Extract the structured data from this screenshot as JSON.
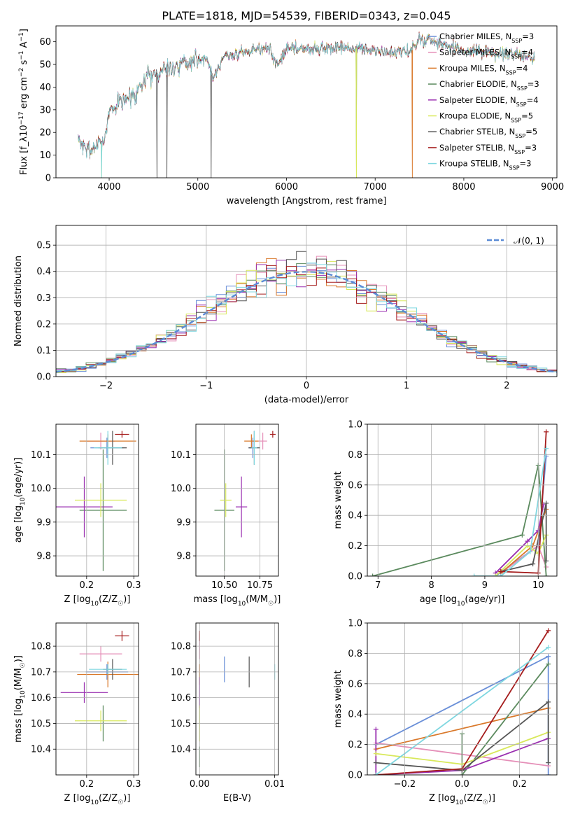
{
  "figure_title": "PLATE=1818, MJD=54539, FIBERID=0343, z=0.045",
  "colors": {
    "Chabrier MILES": "#6a8fd8",
    "Salpeter MILES": "#e58fb8",
    "Kroupa MILES": "#d9782a",
    "Chabrier ELODIE": "#5b8a5e",
    "Salpeter ELODIE": "#9a2fb0",
    "Kroupa ELODIE": "#d8e85a",
    "Chabrier STELIB": "#555555",
    "Salpeter STELIB": "#a51c1c",
    "Kroupa STELIB": "#7fd7e0"
  },
  "chart_data": [
    {
      "id": "spectrum",
      "type": "line",
      "xlabel": "wavelength [Angstrom, rest frame]",
      "ylabel": "Flux [f_λ10^-17 erg cm^-2 s^-1 A^-1]",
      "xlim": [
        3400,
        9050
      ],
      "ylim": [
        0,
        67
      ],
      "xticks": [
        4000,
        5000,
        6000,
        7000,
        8000,
        9000
      ],
      "yticks": [
        0,
        10,
        20,
        30,
        40,
        50,
        60
      ],
      "grid": false,
      "legend_position": "top-right",
      "legend": [
        {
          "label": "Chabrier MILES, N",
          "sub": "SSP",
          "suffix": "=3"
        },
        {
          "label": "Salpeter MILES, N",
          "sub": "SSP",
          "suffix": "=4"
        },
        {
          "label": "Kroupa MILES, N",
          "sub": "SSP",
          "suffix": "=4"
        },
        {
          "label": "Chabrier ELODIE, N",
          "sub": "SSP",
          "suffix": "=3"
        },
        {
          "label": "Salpeter ELODIE, N",
          "sub": "SSP",
          "suffix": "=4"
        },
        {
          "label": "Kroupa ELODIE, N",
          "sub": "SSP",
          "suffix": "=5"
        },
        {
          "label": "Chabrier STELIB, N",
          "sub": "SSP",
          "suffix": "=5"
        },
        {
          "label": "Salpeter STELIB, N",
          "sub": "SSP",
          "suffix": "=3"
        },
        {
          "label": "Kroupa STELIB, N",
          "sub": "SSP",
          "suffix": "=3"
        }
      ],
      "continuum": [
        [
          3650,
          17
        ],
        [
          3750,
          12
        ],
        [
          3850,
          14
        ],
        [
          3950,
          17
        ],
        [
          4000,
          30
        ],
        [
          4100,
          33
        ],
        [
          4200,
          35
        ],
        [
          4300,
          38
        ],
        [
          4400,
          43
        ],
        [
          4500,
          46
        ],
        [
          4600,
          48
        ],
        [
          4700,
          49
        ],
        [
          4800,
          50
        ],
        [
          4900,
          51
        ],
        [
          5000,
          52
        ],
        [
          5100,
          53
        ],
        [
          5175,
          44
        ],
        [
          5300,
          54
        ],
        [
          5500,
          55
        ],
        [
          5700,
          57
        ],
        [
          5800,
          57
        ],
        [
          5893,
          50
        ],
        [
          6000,
          57
        ],
        [
          6200,
          57
        ],
        [
          6500,
          57
        ],
        [
          6800,
          57
        ],
        [
          7000,
          56
        ],
        [
          7200,
          55
        ],
        [
          7400,
          56
        ],
        [
          7500,
          61
        ],
        [
          7600,
          61
        ],
        [
          7700,
          59
        ],
        [
          8000,
          56
        ],
        [
          8300,
          55
        ],
        [
          8600,
          54
        ],
        [
          8800,
          53
        ]
      ],
      "dropouts": [
        {
          "series": "Kroupa ELODIE",
          "x": 3915
        },
        {
          "series": "Kroupa STELIB",
          "x": 3915
        },
        {
          "series": "Chabrier ELODIE",
          "x": 6790
        },
        {
          "series": "Kroupa ELODIE",
          "x": 6790
        },
        {
          "series": "Kroupa MILES",
          "x": 7420
        },
        {
          "series": "Chabrier STELIB",
          "x": 4540
        },
        {
          "series": "Chabrier STELIB",
          "x": 4650
        },
        {
          "series": "Chabrier STELIB",
          "x": 5150
        }
      ]
    },
    {
      "id": "residuals",
      "type": "histogram",
      "xlabel": "(data-model)/error",
      "ylabel": "Normed distribution",
      "xlim": [
        -2.5,
        2.5
      ],
      "ylim": [
        0,
        0.575
      ],
      "xticks": [
        -2,
        -1,
        0,
        1,
        2
      ],
      "yticks": [
        0.0,
        0.1,
        0.2,
        0.3,
        0.4,
        0.5
      ],
      "grid": true,
      "legend_position": "top-right",
      "legend": [
        {
          "label": "𝒩(0, 1)",
          "style": "dashed"
        }
      ],
      "bin_width": 0.1,
      "x_start": -2.5
    },
    {
      "id": "age-vs-Z",
      "type": "errorbar",
      "xlabel": "Z [log10(Z/Z☉)]",
      "ylabel": "age [log10(age/yr)]",
      "xlim": [
        0.135,
        0.31
      ],
      "ylim": [
        9.74,
        10.19
      ],
      "xticks": [
        0.2,
        0.3
      ],
      "yticks": [
        9.8,
        9.9,
        10.0,
        10.1
      ],
      "grid": true,
      "points": [
        {
          "series": "Chabrier MILES",
          "x": 0.243,
          "xerr": 0.035,
          "y": 10.12,
          "yerr": 0.03
        },
        {
          "series": "Salpeter MILES",
          "x": 0.23,
          "xerr": 0.03,
          "y": 10.14,
          "yerr": 0.025
        },
        {
          "series": "Kroupa MILES",
          "x": 0.245,
          "xerr": 0.06,
          "y": 10.14,
          "yerr": 0.02
        },
        {
          "series": "Chabrier ELODIE",
          "x": 0.235,
          "xerr": 0.05,
          "y": 9.935,
          "yerr": 0.18
        },
        {
          "series": "Salpeter ELODIE",
          "x": 0.195,
          "xerr": 0.06,
          "y": 9.945,
          "yerr": 0.09
        },
        {
          "series": "Kroupa ELODIE",
          "x": 0.23,
          "xerr": 0.055,
          "y": 9.965,
          "yerr": 0.05
        },
        {
          "series": "Chabrier STELIB",
          "x": 0.255,
          "xerr": 0.03,
          "y": 10.12,
          "yerr": 0.05
        },
        {
          "series": "Salpeter STELIB",
          "x": 0.275,
          "xerr": 0.015,
          "y": 10.16,
          "yerr": 0.01
        },
        {
          "series": "Kroupa STELIB",
          "x": 0.245,
          "xerr": 0.03,
          "y": 10.12,
          "yerr": 0.05
        }
      ]
    },
    {
      "id": "age-vs-mass",
      "type": "errorbar",
      "xlabel": "mass [log10(M/M☉)]",
      "ylabel": "",
      "xlim": [
        10.3,
        10.88
      ],
      "ylim": [
        9.74,
        10.19
      ],
      "xticks": [
        10.5,
        10.75
      ],
      "yticks": [
        9.8,
        9.9,
        10.0,
        10.1
      ],
      "grid": true,
      "points": [
        {
          "series": "Chabrier MILES",
          "x": 10.7,
          "xerr": 0.03,
          "y": 10.12,
          "yerr": 0.03
        },
        {
          "series": "Salpeter MILES",
          "x": 10.77,
          "xerr": 0.03,
          "y": 10.14,
          "yerr": 0.025
        },
        {
          "series": "Kroupa MILES",
          "x": 10.69,
          "xerr": 0.05,
          "y": 10.14,
          "yerr": 0.02
        },
        {
          "series": "Chabrier ELODIE",
          "x": 10.5,
          "xerr": 0.07,
          "y": 9.935,
          "yerr": 0.18
        },
        {
          "series": "Salpeter ELODIE",
          "x": 10.62,
          "xerr": 0.04,
          "y": 9.945,
          "yerr": 0.09
        },
        {
          "series": "Kroupa ELODIE",
          "x": 10.51,
          "xerr": 0.04,
          "y": 9.965,
          "yerr": 0.05
        },
        {
          "series": "Chabrier STELIB",
          "x": 10.71,
          "xerr": 0.04,
          "y": 10.12,
          "yerr": 0.05
        },
        {
          "series": "Salpeter STELIB",
          "x": 10.84,
          "xerr": 0.02,
          "y": 10.16,
          "yerr": 0.01
        },
        {
          "series": "Kroupa STELIB",
          "x": 10.71,
          "xerr": 0.02,
          "y": 10.12,
          "yerr": 0.05
        }
      ]
    },
    {
      "id": "weight-vs-age",
      "type": "line",
      "xlabel": "age [log10(age/yr)]",
      "ylabel": "mass weight",
      "xlim": [
        6.8,
        10.35
      ],
      "ylim": [
        0,
        1.0
      ],
      "xticks": [
        7,
        8,
        9,
        10
      ],
      "yticks": [
        0.0,
        0.2,
        0.4,
        0.6,
        0.8,
        1.0
      ],
      "grid": true,
      "series": [
        {
          "name": "Chabrier MILES",
          "x": [
            9.2,
            10.0,
            10.15
          ],
          "y": [
            0.0,
            0.2,
            0.79
          ]
        },
        {
          "name": "Salpeter MILES",
          "x": [
            9.3,
            10.0,
            10.15
          ],
          "y": [
            0.02,
            0.2,
            0.06
          ]
        },
        {
          "name": "Kroupa MILES",
          "x": [
            9.3,
            9.9,
            10.15
          ],
          "y": [
            0.02,
            0.2,
            0.44
          ]
        },
        {
          "name": "Chabrier ELODIE",
          "x": [
            6.9,
            9.7,
            10.0,
            10.15
          ],
          "y": [
            0.0,
            0.27,
            0.73,
            0.0
          ]
        },
        {
          "name": "Salpeter ELODIE",
          "x": [
            9.2,
            9.8,
            10.0,
            10.1
          ],
          "y": [
            0.02,
            0.23,
            0.3,
            0.47
          ]
        },
        {
          "name": "Kroupa ELODIE",
          "x": [
            9.2,
            9.8,
            10.0,
            10.15
          ],
          "y": [
            0.0,
            0.2,
            0.15,
            0.27
          ]
        },
        {
          "name": "Chabrier STELIB",
          "x": [
            9.3,
            9.9,
            10.15,
            10.15
          ],
          "y": [
            0.03,
            0.08,
            0.48,
            0.1
          ]
        },
        {
          "name": "Salpeter STELIB",
          "x": [
            9.3,
            10.0,
            10.15
          ],
          "y": [
            0.03,
            0.02,
            0.95
          ]
        },
        {
          "name": "Kroupa STELIB",
          "x": [
            8.8,
            9.3,
            9.85,
            10.15
          ],
          "y": [
            0.0,
            0.0,
            0.16,
            0.84
          ]
        }
      ]
    },
    {
      "id": "mass-vs-Z",
      "type": "errorbar",
      "xlabel": "Z [log10(Z/Z☉)]",
      "ylabel": "mass [log10(M/M☉)]",
      "xlim": [
        0.135,
        0.31
      ],
      "ylim": [
        10.3,
        10.89
      ],
      "xticks": [
        0.2,
        0.3
      ],
      "yticks": [
        10.4,
        10.5,
        10.6,
        10.7,
        10.8
      ],
      "grid": true,
      "points": [
        {
          "series": "Chabrier MILES",
          "x": 0.243,
          "xerr": 0.045,
          "y": 10.7,
          "yerr": 0.03
        },
        {
          "series": "Salpeter MILES",
          "x": 0.23,
          "xerr": 0.045,
          "y": 10.77,
          "yerr": 0.03
        },
        {
          "series": "Kroupa MILES",
          "x": 0.245,
          "xerr": 0.065,
          "y": 10.69,
          "yerr": 0.05
        },
        {
          "series": "Chabrier ELODIE",
          "x": 0.235,
          "xerr": 0.05,
          "y": 10.5,
          "yerr": 0.07
        },
        {
          "series": "Salpeter ELODIE",
          "x": 0.195,
          "xerr": 0.05,
          "y": 10.62,
          "yerr": 0.04
        },
        {
          "series": "Kroupa ELODIE",
          "x": 0.23,
          "xerr": 0.055,
          "y": 10.51,
          "yerr": 0.04
        },
        {
          "series": "Chabrier STELIB",
          "x": 0.255,
          "xerr": 0.02,
          "y": 10.71,
          "yerr": 0.04
        },
        {
          "series": "Salpeter STELIB",
          "x": 0.275,
          "xerr": 0.015,
          "y": 10.84,
          "yerr": 0.02
        },
        {
          "series": "Kroupa STELIB",
          "x": 0.245,
          "xerr": 0.04,
          "y": 10.71,
          "yerr": 0.02
        }
      ]
    },
    {
      "id": "mass-vs-ebv",
      "type": "errorbar",
      "xlabel": "E(B-V)",
      "ylabel": "",
      "xlim": [
        -0.0005,
        0.0105
      ],
      "ylim": [
        10.3,
        10.89
      ],
      "xticks": [
        0.0,
        0.01
      ],
      "xticklabels": [
        "0.00",
        "0.01"
      ],
      "yticks": [
        10.4,
        10.5,
        10.6,
        10.7,
        10.8
      ],
      "grid": true,
      "points": [
        {
          "series": "Chabrier MILES",
          "x": 0.0033,
          "xerr": 0,
          "y": 10.71,
          "yerr": 0.05
        },
        {
          "series": "Salpeter MILES",
          "x": 0.0,
          "xerr": 0,
          "y": 10.8,
          "yerr": 0.05
        },
        {
          "series": "Kroupa MILES",
          "x": 0.0,
          "xerr": 0,
          "y": 10.69,
          "yerr": 0.04
        },
        {
          "series": "Chabrier ELODIE",
          "x": 0.0,
          "xerr": 0,
          "y": 10.37,
          "yerr": 0.04
        },
        {
          "series": "Salpeter ELODIE",
          "x": 0.0,
          "xerr": 0,
          "y": 10.62,
          "yerr": 0.06
        },
        {
          "series": "Kroupa ELODIE",
          "x": 0.0,
          "xerr": 0,
          "y": 10.5,
          "yerr": 0.07
        },
        {
          "series": "Chabrier STELIB",
          "x": 0.0066,
          "xerr": 0,
          "y": 10.7,
          "yerr": 0.06
        },
        {
          "series": "Salpeter STELIB",
          "x": 0.0,
          "xerr": 0,
          "y": 10.84,
          "yerr": 0.02
        },
        {
          "series": "Kroupa STELIB",
          "x": 0.01,
          "xerr": 0,
          "y": 10.7,
          "yerr": 0.03
        }
      ]
    },
    {
      "id": "weight-vs-Z",
      "type": "line",
      "xlabel": "Z [log10(Z/Z☉)]",
      "ylabel": "mass weight",
      "xlim": [
        -0.33,
        0.33
      ],
      "ylim": [
        0,
        1.0
      ],
      "xticks": [
        -0.2,
        0.0,
        0.2
      ],
      "yticks": [
        0.0,
        0.2,
        0.4,
        0.6,
        0.8,
        1.0
      ],
      "grid": true,
      "series": [
        {
          "name": "Chabrier MILES",
          "x": [
            -0.3,
            0.3,
            0.3
          ],
          "y": [
            0.2,
            0.78,
            0.0
          ]
        },
        {
          "name": "Salpeter MILES",
          "x": [
            -0.3,
            0.3
          ],
          "y": [
            0.21,
            0.06
          ]
        },
        {
          "name": "Kroupa MILES",
          "x": [
            -0.3,
            0.3
          ],
          "y": [
            0.17,
            0.44
          ]
        },
        {
          "name": "Chabrier ELODIE",
          "x": [
            0.0,
            0.0,
            0.3
          ],
          "y": [
            0.27,
            0.0,
            0.73
          ]
        },
        {
          "name": "Salpeter ELODIE",
          "x": [
            -0.3,
            -0.3,
            0.0,
            0.3
          ],
          "y": [
            0.3,
            0.0,
            0.03,
            0.24
          ]
        },
        {
          "name": "Kroupa ELODIE",
          "x": [
            -0.3,
            0.0,
            0.3
          ],
          "y": [
            0.14,
            0.07,
            0.28
          ]
        },
        {
          "name": "Chabrier STELIB",
          "x": [
            -0.3,
            0.0,
            0.3,
            0.3
          ],
          "y": [
            0.08,
            0.03,
            0.48,
            0.08
          ]
        },
        {
          "name": "Salpeter STELIB",
          "x": [
            -0.3,
            0.0,
            0.3
          ],
          "y": [
            0.0,
            0.04,
            0.95
          ]
        },
        {
          "name": "Kroupa STELIB",
          "x": [
            -0.3,
            0.3
          ],
          "y": [
            0.0,
            0.84
          ]
        }
      ]
    }
  ]
}
